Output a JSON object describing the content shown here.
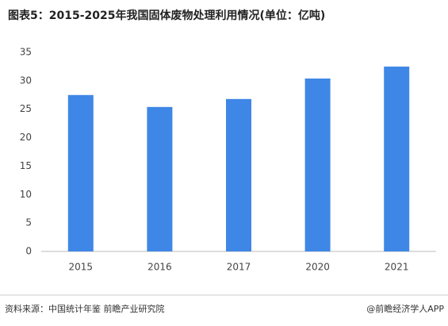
{
  "chart_data": {
    "type": "bar",
    "title": "图表5：2015-2025年我国固体废物处理利用情况(单位：亿吨)",
    "categories": [
      "2015",
      "2016",
      "2017",
      "2020",
      "2021"
    ],
    "values": [
      27.5,
      25.4,
      26.8,
      30.4,
      32.5
    ],
    "color": "#3f87e6",
    "ylim": [
      0,
      35
    ],
    "yticks": [
      0,
      5,
      10,
      15,
      20,
      25,
      30,
      35
    ],
    "grid": false,
    "source": "资料来源：中国统计年鉴 前瞻产业研究院",
    "credit": "@前瞻经济学人APP"
  }
}
